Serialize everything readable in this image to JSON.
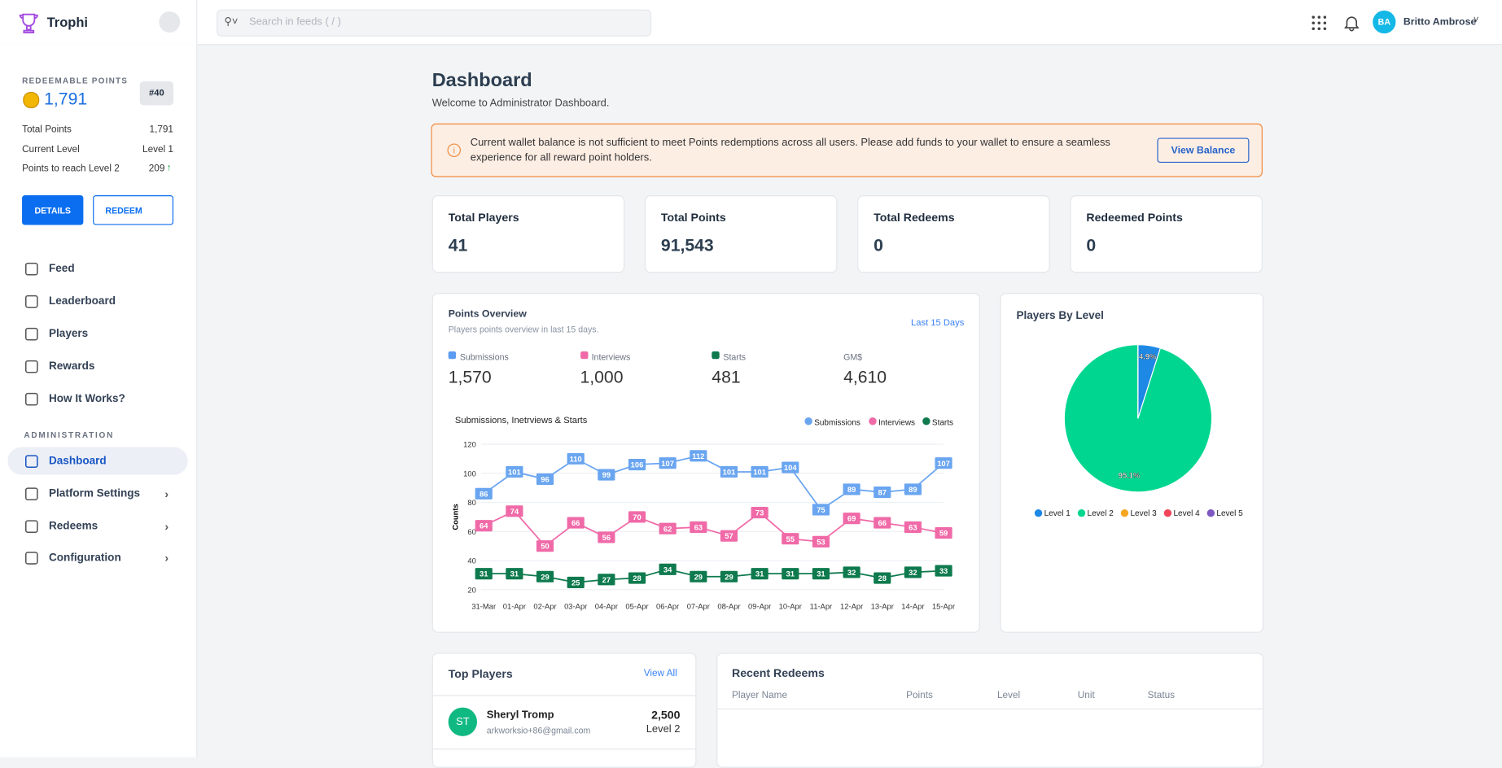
{
  "header": {
    "brand": "Trophi",
    "search_placeholder": "Search in feeds ( / )",
    "user_initials": "BA",
    "user_name": "Britto Ambrose"
  },
  "sidebar": {
    "points_label": "REDEEMABLE POINTS",
    "points_value": "1,791",
    "rank": "#40",
    "stats": [
      {
        "label": "Total Points",
        "value": "1,791"
      },
      {
        "label": "Current Level",
        "value": "Level 1"
      },
      {
        "label": "Points to reach Level 2",
        "value": "209"
      }
    ],
    "buttons": [
      "DETAILS",
      "REDEEM"
    ],
    "nav": [
      "Feed",
      "Leaderboard",
      "Players",
      "Rewards",
      "How It Works?"
    ],
    "section": "ADMINISTRATION",
    "admin_nav": [
      "Dashboard",
      "Platform Settings",
      "Redeems",
      "Configuration"
    ]
  },
  "page": {
    "title": "Dashboard",
    "subtitle": "Welcome to Administrator Dashboard."
  },
  "alert": {
    "text": "Current wallet balance is not sufficient to meet Points redemptions across all users. Please add funds to your wallet to ensure a seamless experience for all reward point holders.",
    "button": "View Balance"
  },
  "cards": [
    {
      "label": "Total Players",
      "value": "41"
    },
    {
      "label": "Total Points",
      "value": "91,543"
    },
    {
      "label": "Total Redeems",
      "value": "0"
    },
    {
      "label": "Redeemed Points",
      "value": "0"
    }
  ],
  "overview": {
    "title": "Points Overview",
    "subtitle": "Players points overview in last 15 days.",
    "range": "Last 15 Days",
    "summary": [
      {
        "name": "Submissions",
        "value": "1,570",
        "color": "#5b9cf0"
      },
      {
        "name": "Interviews",
        "value": "1,000",
        "color": "#f06aa8"
      },
      {
        "name": "Starts",
        "value": "481",
        "color": "#0e7a4e"
      },
      {
        "name": "GM$",
        "value": "4,610"
      }
    ]
  },
  "chart_data": [
    {
      "type": "line",
      "title": "Submissions, Inetrviews & Starts",
      "y_label": "Counts",
      "categories": [
        "31-Mar",
        "01-Apr",
        "02-Apr",
        "03-Apr",
        "04-Apr",
        "05-Apr",
        "06-Apr",
        "07-Apr",
        "08-Apr",
        "09-Apr",
        "10-Apr",
        "11-Apr",
        "12-Apr",
        "13-Apr",
        "14-Apr",
        "15-Apr"
      ],
      "series": [
        {
          "name": "Submissions",
          "color": "#6aa5f0",
          "values": [
            86,
            101,
            96,
            110,
            99,
            106,
            107,
            112,
            101,
            101,
            104,
            75,
            89,
            87,
            89,
            107
          ]
        },
        {
          "name": "Interviews",
          "color": "#f06aa8",
          "values": [
            64,
            74,
            50,
            66,
            56,
            70,
            62,
            63,
            57,
            73,
            55,
            53,
            69,
            66,
            63,
            59
          ]
        },
        {
          "name": "Starts",
          "color": "#0e7a4e",
          "values": [
            31,
            31,
            29,
            25,
            27,
            28,
            34,
            29,
            29,
            31,
            31,
            31,
            32,
            28,
            32,
            33
          ]
        }
      ],
      "ylim": [
        20,
        120
      ],
      "yticks": [
        20,
        40,
        60,
        80,
        100,
        120
      ],
      "grid": true,
      "legend": "top-right"
    },
    {
      "type": "pie",
      "title": "Players By Level",
      "categories": [
        "Level 1",
        "Level 2",
        "Level 3",
        "Level 4",
        "Level 5"
      ],
      "values": [
        4.9,
        95.1,
        0,
        0,
        0
      ],
      "value_labels": [
        "4.9%",
        "95.1%",
        null,
        null,
        null
      ],
      "colors": [
        "#1e88e5",
        "#00d68f",
        "#f5a623",
        "#f0455a",
        "#7e57c2"
      ],
      "legend": "bottom"
    }
  ],
  "top_players": {
    "title": "Top Players",
    "link": "View All",
    "rows": [
      {
        "initials": "ST",
        "name": "Sheryl Tromp",
        "email": "arkworksio+86@gmail.com",
        "points": "2,500",
        "level": "Level 2"
      }
    ]
  },
  "recent_redeems": {
    "title": "Recent Redeems",
    "columns": [
      "Player Name",
      "Points",
      "Level",
      "Unit",
      "Status"
    ]
  }
}
